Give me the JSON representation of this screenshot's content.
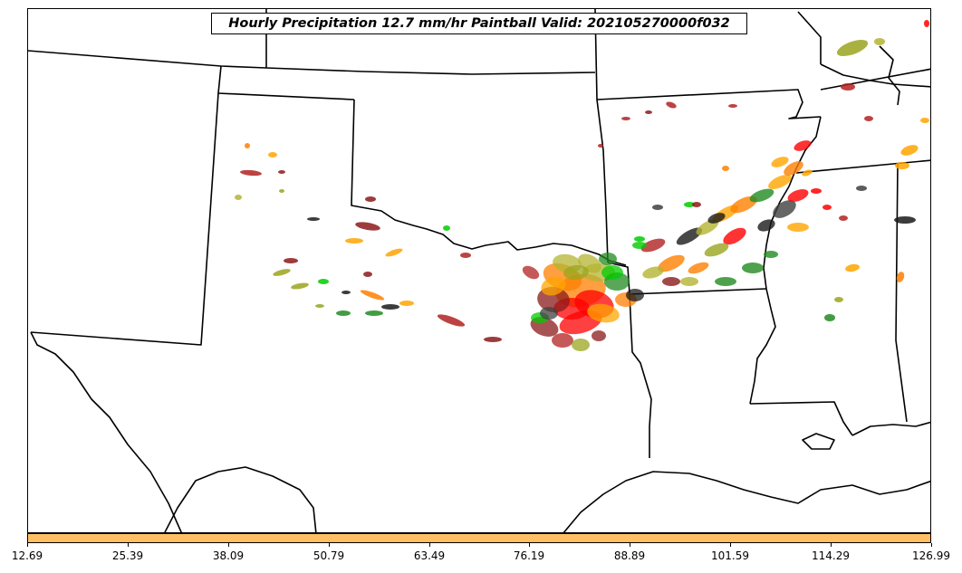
{
  "title": "Hourly Precipitation 12.7 mm/hr Paintball Valid: 202105270000f032",
  "colorbar": {
    "color": "#ffc065",
    "ticks": [
      "12.69",
      "25.39",
      "38.09",
      "50.79",
      "63.49",
      "76.19",
      "88.89",
      "101.59",
      "114.29",
      "126.99"
    ]
  },
  "member_colors": [
    "#8b1a1a",
    "#b22222",
    "#ff0000",
    "#ff7f00",
    "#ffa500",
    "#9aa51e",
    "#b4b432",
    "#228b22",
    "#00cc00",
    "#1a1a1a",
    "#404040"
  ]
}
